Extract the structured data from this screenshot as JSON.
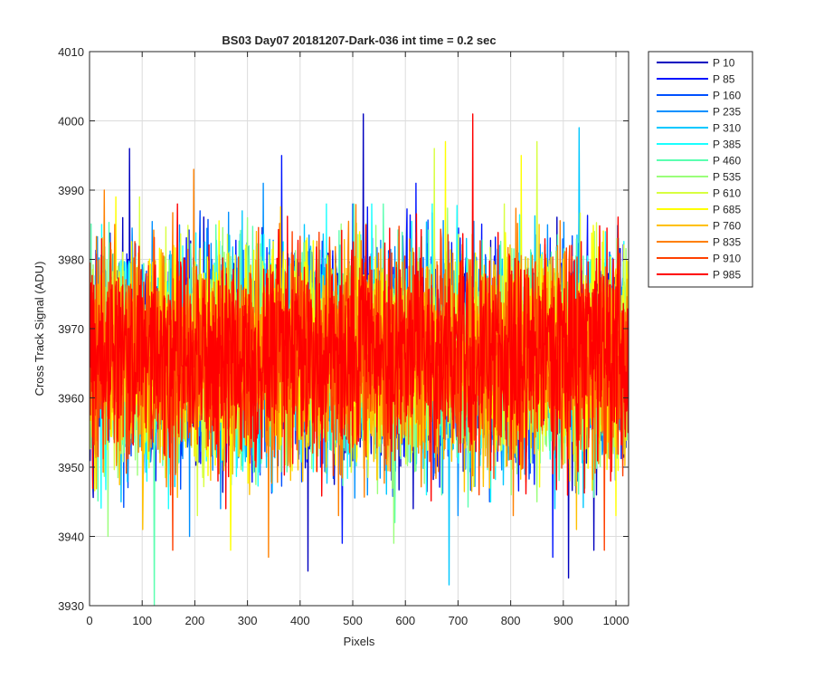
{
  "chart_data": {
    "type": "line",
    "title": "BS03 Day07 20181207-Dark-036 int time = 0.2 sec",
    "xlabel": "Pixels",
    "ylabel": "Cross Track Signal (ADU)",
    "xlim": [
      0,
      1024
    ],
    "ylim": [
      3930,
      4010
    ],
    "x_ticks": [
      0,
      100,
      200,
      300,
      400,
      500,
      600,
      700,
      800,
      900,
      1000
    ],
    "y_ticks": [
      3930,
      3940,
      3950,
      3960,
      3970,
      3980,
      3990,
      4000,
      4010
    ],
    "grid": true,
    "legend_position": "outside-top-right",
    "noise_mean": 3966,
    "noise_sd": 7.5,
    "series": [
      {
        "name": "P 10",
        "color": "#0000bf",
        "peaks": [
          [
            76,
            3996
          ],
          [
            415,
            3935
          ],
          [
            520,
            4001
          ],
          [
            910,
            3934
          ],
          [
            958,
            3938
          ]
        ]
      },
      {
        "name": "P 85",
        "color": "#0014ff",
        "peaks": [
          [
            365,
            3995
          ],
          [
            480,
            3939
          ],
          [
            620,
            3991
          ],
          [
            880,
            3937
          ]
        ]
      },
      {
        "name": "P 160",
        "color": "#0050ff",
        "peaks": [
          [
            210,
            3987
          ],
          [
            500,
            3988
          ],
          [
            760,
            3945
          ],
          [
            930,
            3988
          ]
        ]
      },
      {
        "name": "P 235",
        "color": "#0090ff",
        "peaks": [
          [
            190,
            3940
          ],
          [
            330,
            3991
          ],
          [
            700,
            3943
          ],
          [
            870,
            3985
          ]
        ]
      },
      {
        "name": "P 310",
        "color": "#00c8ff",
        "peaks": [
          [
            60,
            3945
          ],
          [
            290,
            3987
          ],
          [
            683,
            3933
          ],
          [
            930,
            3999
          ]
        ]
      },
      {
        "name": "P 385",
        "color": "#1affff",
        "peaks": [
          [
            150,
            3944
          ],
          [
            450,
            3988
          ],
          [
            640,
            3946
          ],
          [
            980,
            3984
          ]
        ]
      },
      {
        "name": "P 460",
        "color": "#5affb0",
        "peaks": [
          [
            123,
            3930
          ],
          [
            240,
            3985
          ],
          [
            580,
            3942
          ],
          [
            820,
            3990
          ]
        ]
      },
      {
        "name": "P 535",
        "color": "#9aff7a",
        "peaks": [
          [
            35,
            3940
          ],
          [
            300,
            3986
          ],
          [
            578,
            3939
          ],
          [
            850,
            3945
          ]
        ]
      },
      {
        "name": "P 610",
        "color": "#d8ff40",
        "peaks": [
          [
            95,
            3989
          ],
          [
            205,
            3943
          ],
          [
            655,
            3996
          ],
          [
            850,
            3997
          ]
        ]
      },
      {
        "name": "P 685",
        "color": "#ffff00",
        "peaks": [
          [
            50,
            3989
          ],
          [
            268,
            3938
          ],
          [
            676,
            3997
          ],
          [
            820,
            3995
          ],
          [
            1000,
            3943
          ]
        ]
      },
      {
        "name": "P 760",
        "color": "#ffc000",
        "peaks": [
          [
            101,
            3941
          ],
          [
            450,
            3950
          ],
          [
            760,
            3947
          ],
          [
            925,
            3941
          ]
        ]
      },
      {
        "name": "P 835",
        "color": "#ff8000",
        "peaks": [
          [
            28,
            3990
          ],
          [
            198,
            3993
          ],
          [
            340,
            3937
          ],
          [
            473,
            3943
          ],
          [
            805,
            3943
          ]
        ]
      },
      {
        "name": "P 910",
        "color": "#ff4000",
        "peaks": [
          [
            158,
            3938
          ],
          [
            385,
            3984
          ],
          [
            740,
            3946
          ],
          [
            978,
            3938
          ]
        ]
      },
      {
        "name": "P 985",
        "color": "#ff0000",
        "peaks": [
          [
            244,
            3948
          ],
          [
            525,
            3985
          ],
          [
            728,
            4001
          ],
          [
            990,
            3948
          ]
        ]
      }
    ]
  }
}
